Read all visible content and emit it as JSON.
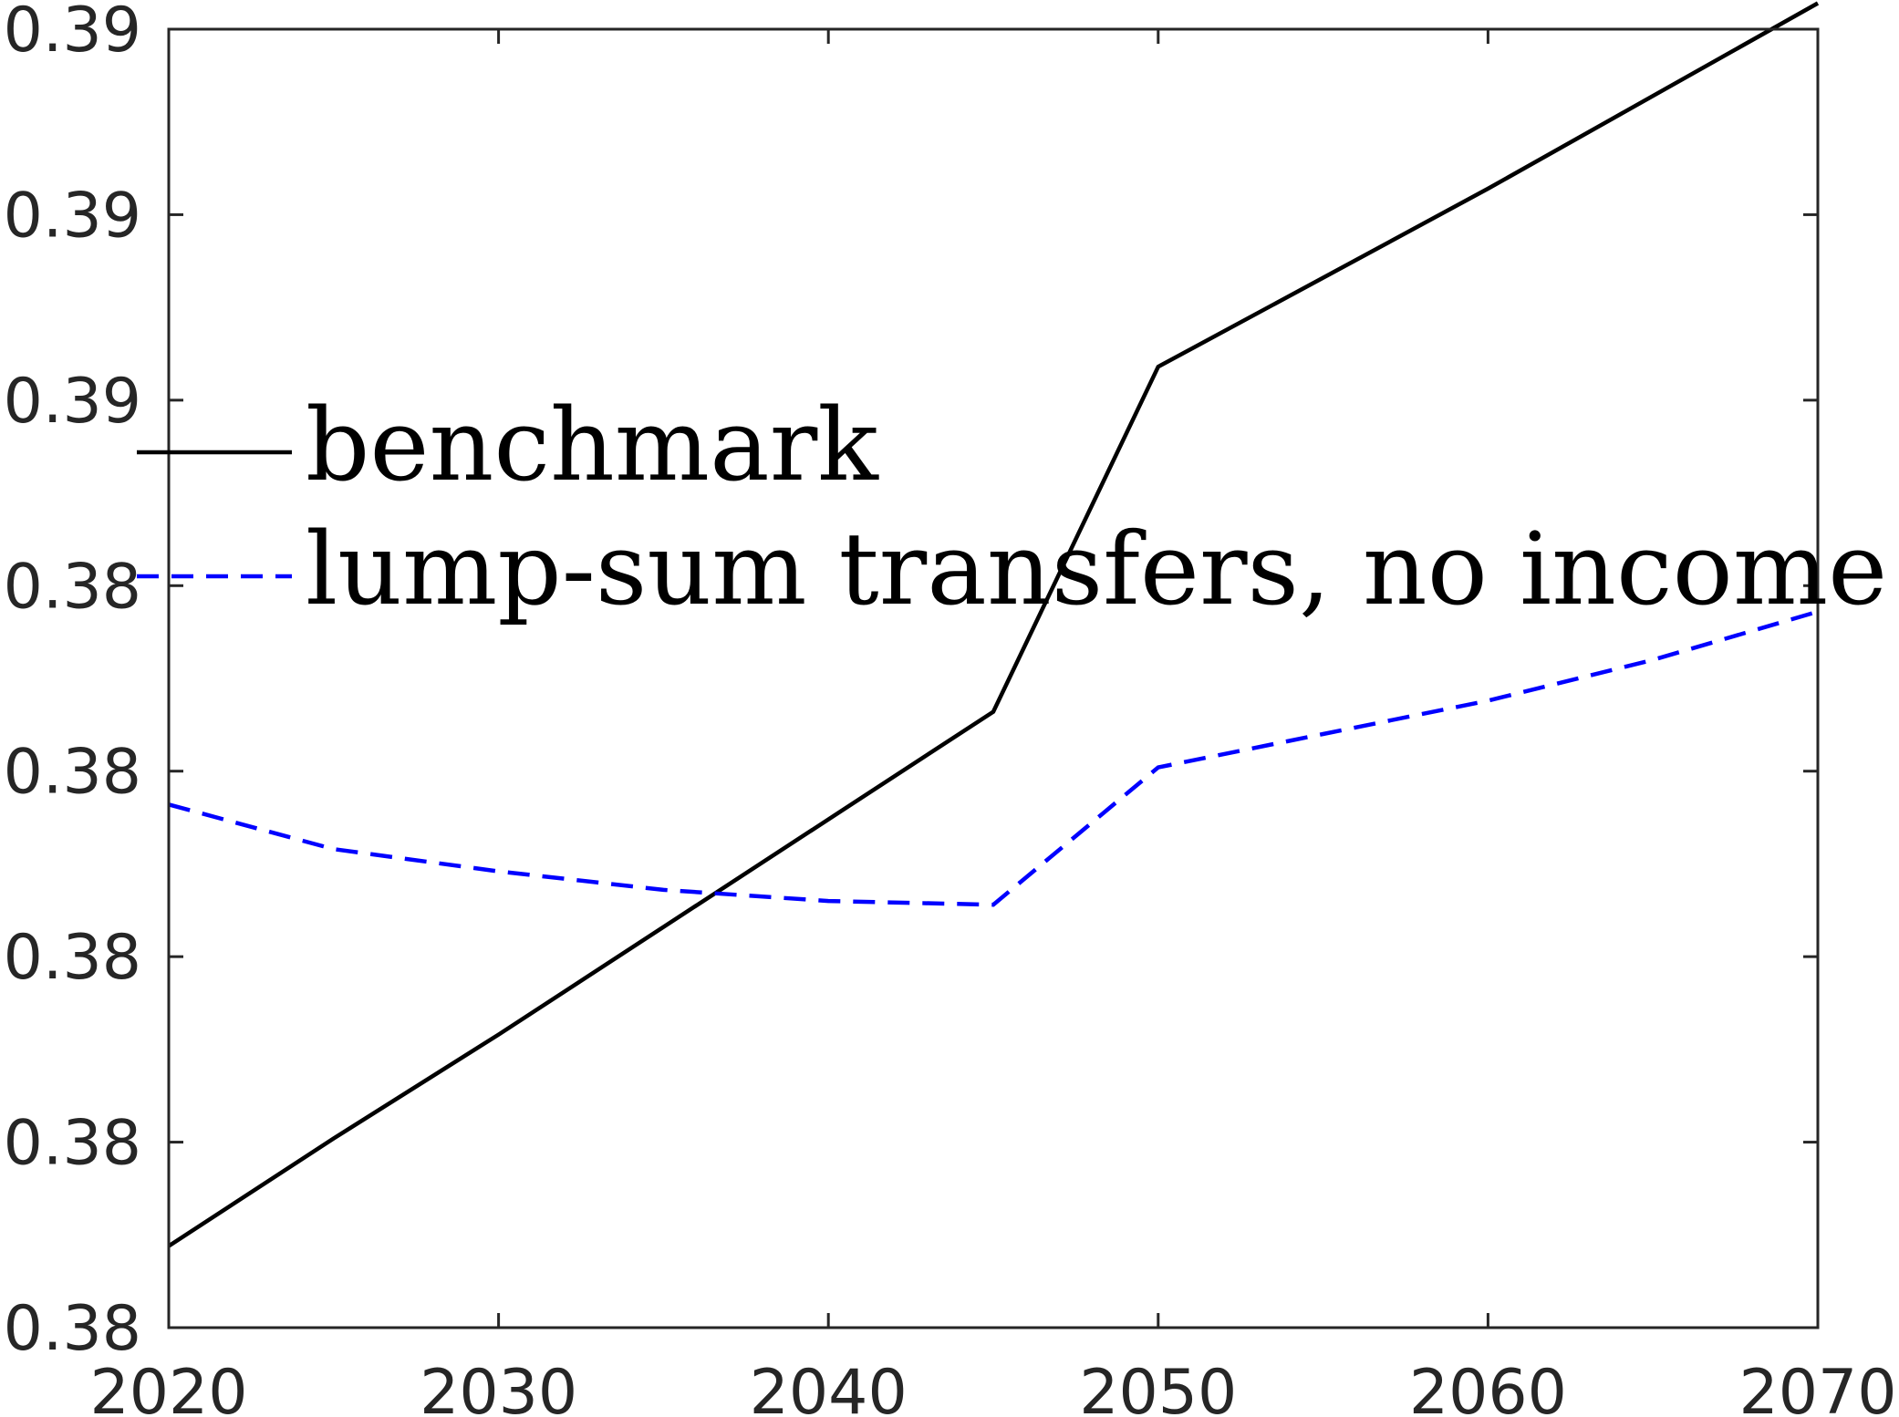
{
  "chart_data": {
    "type": "line",
    "title": "",
    "xlabel": "",
    "ylabel": "",
    "xlim": [
      2020,
      2070
    ],
    "ylim": [
      0.38,
      0.3835
    ],
    "x_ticks": [
      2020,
      2030,
      2040,
      2050,
      2060,
      2070
    ],
    "x_tick_labels": [
      "2020",
      "2030",
      "2040",
      "2050",
      "2060",
      "2070"
    ],
    "y_ticks": [
      0.38,
      0.3805,
      0.381,
      0.3815,
      0.382,
      0.3825,
      0.383,
      0.3835
    ],
    "y_tick_labels": [
      "0.38",
      "0.38",
      "0.38",
      "0.38",
      "0.38",
      "0.39",
      "0.39",
      "0.39"
    ],
    "grid": false,
    "legend_position": "middle-left",
    "series": [
      {
        "name": "benchmark",
        "color": "#000000",
        "dash": "solid",
        "x": [
          2020,
          2025,
          2030,
          2035,
          2040,
          2045,
          2050,
          2055,
          2060,
          2065,
          2070
        ],
        "y": [
          0.38022,
          0.38051,
          0.38079,
          0.38108,
          0.38137,
          0.38166,
          0.38259,
          0.38283,
          0.38307,
          0.38332,
          0.38357
        ]
      },
      {
        "name": "lump-sum transfers, no income tax",
        "color": "#0000ff",
        "dash": "dashed",
        "x": [
          2020,
          2025,
          2030,
          2035,
          2040,
          2045,
          2050,
          2055,
          2060,
          2065,
          2070
        ],
        "y": [
          0.38141,
          0.38129,
          0.38123,
          0.38118,
          0.38115,
          0.38114,
          0.38151,
          0.3816,
          0.38169,
          0.3818,
          0.38193
        ]
      }
    ]
  }
}
